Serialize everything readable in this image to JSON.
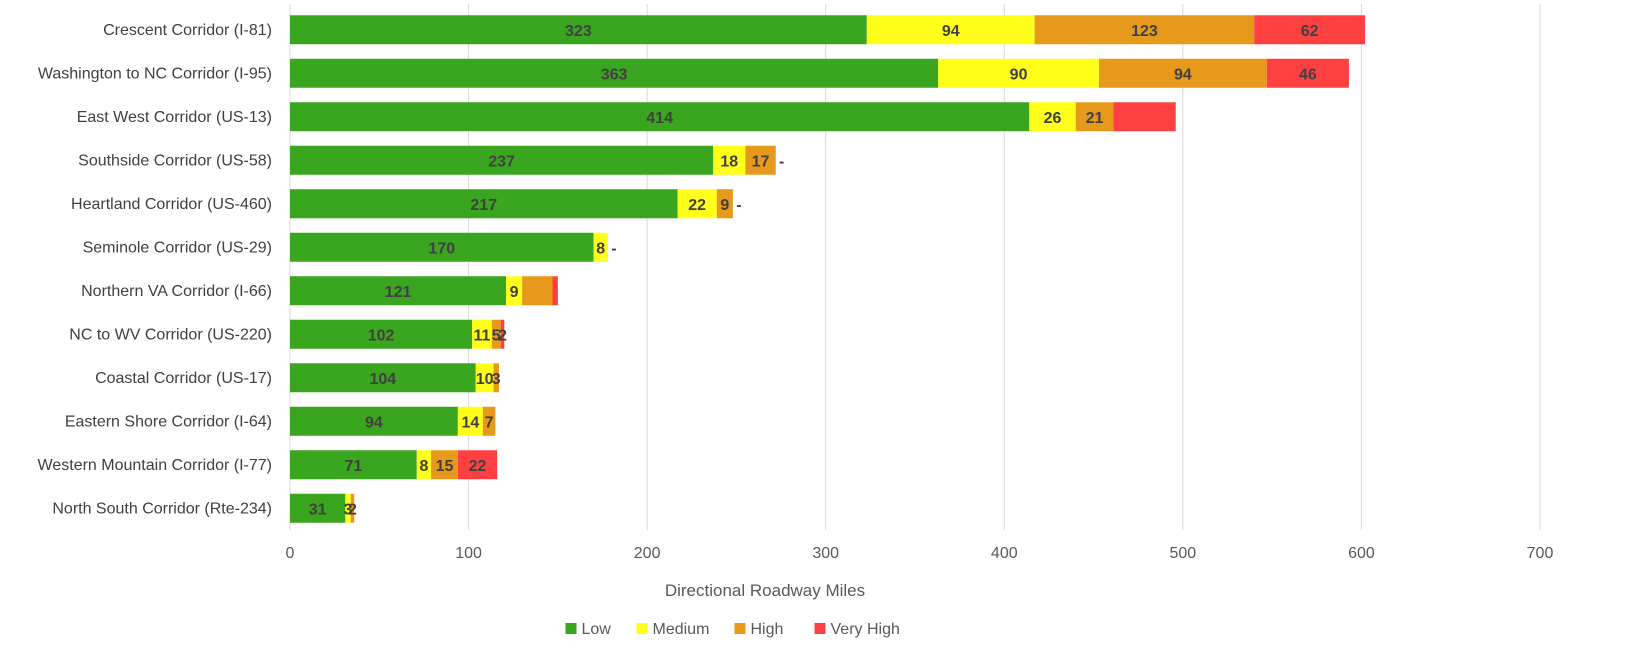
{
  "chart_data": {
    "type": "bar",
    "orientation": "horizontal",
    "stacked": true,
    "categories": [
      "Crescent Corridor (I-81)",
      "Washington to NC Corridor (I-95)",
      "East West Corridor (US-13)",
      "Southside Corridor (US-58)",
      "Heartland Corridor (US-460)",
      "Seminole Corridor (US-29)",
      "Northern VA Corridor (I-66)",
      "NC to WV Corridor (US-220)",
      "Coastal Corridor (US-17)",
      "Eastern Shore Corridor (I-64)",
      "Western Mountain Corridor (I-77)",
      "North South Corridor (Rte-234)"
    ],
    "series": [
      {
        "name": "Low",
        "color": "#3aa51e",
        "values": [
          323,
          363,
          414,
          237,
          217,
          170,
          121,
          102,
          104,
          94,
          71,
          31
        ],
        "labels": [
          "323",
          "363",
          "414",
          "237",
          "217",
          "170",
          "121",
          "102",
          "104",
          "94",
          "71",
          "31"
        ]
      },
      {
        "name": "Medium",
        "color": "#ffff1a",
        "values": [
          94,
          90,
          26,
          18,
          22,
          8,
          9,
          11,
          10,
          14,
          8,
          3
        ],
        "labels": [
          "94",
          "90",
          "26",
          "18",
          "22",
          "8",
          "9",
          "11",
          "10",
          "14",
          "8",
          "3"
        ]
      },
      {
        "name": "High",
        "color": "#e6991a",
        "values": [
          123,
          94,
          21,
          17,
          9,
          0,
          17,
          5,
          3,
          7,
          15,
          2
        ],
        "labels": [
          "123",
          "94",
          "21",
          "17",
          "9",
          "-",
          "",
          "5",
          "3",
          "7",
          "15",
          "2"
        ]
      },
      {
        "name": "Very High",
        "color": "#ff4040",
        "values": [
          62,
          46,
          35,
          0,
          0,
          0,
          3,
          2,
          0,
          0,
          22,
          0
        ],
        "labels": [
          "62",
          "46",
          "",
          "-",
          "-",
          "",
          "",
          "2",
          "",
          "",
          "22",
          ""
        ]
      }
    ],
    "xlabel": "Directional Roadway Miles",
    "ylabel": "",
    "xlim": [
      0,
      700
    ],
    "xticks": [
      "0",
      "100",
      "200",
      "300",
      "400",
      "500",
      "600",
      "700"
    ],
    "grid": true,
    "legend": "bottom"
  }
}
